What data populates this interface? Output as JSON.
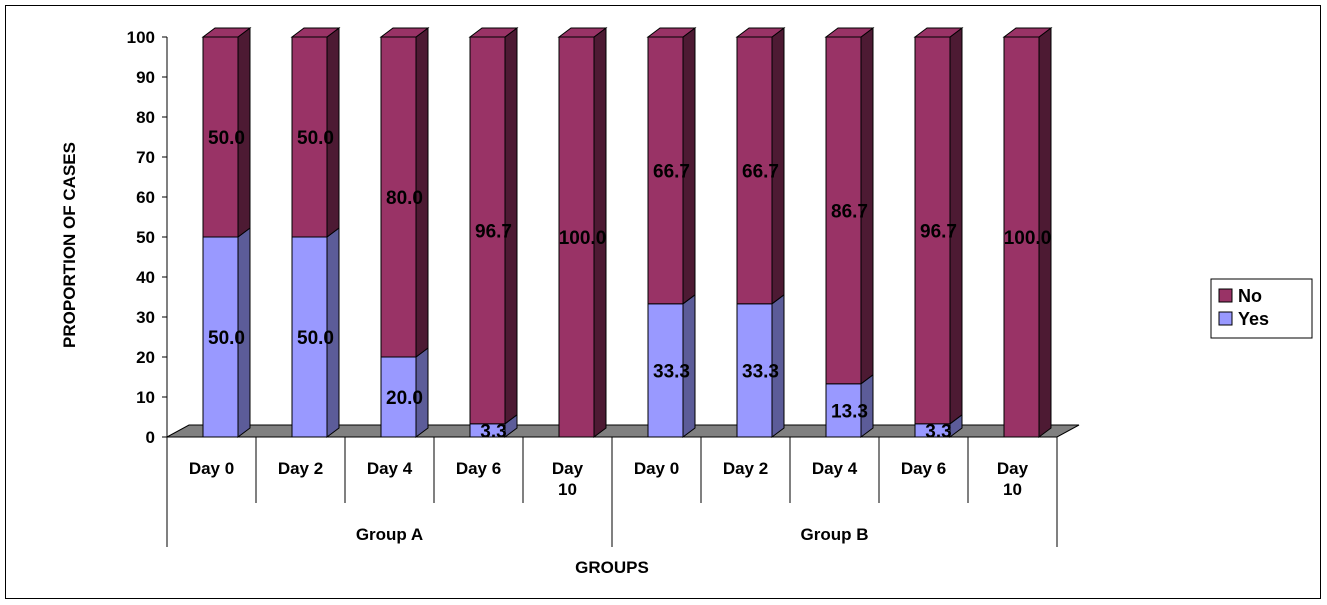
{
  "chart_data": {
    "type": "bar",
    "stacked": true,
    "three_d": true,
    "ylabel": "PROPORTION OF CASES",
    "xlabel": "GROUPS",
    "ylim": [
      0,
      100
    ],
    "yticks": [
      "0",
      "10",
      "20",
      "30",
      "40",
      "50",
      "60",
      "70",
      "80",
      "90",
      "100"
    ],
    "groups": [
      {
        "name": "Group A",
        "categories": [
          "Day 0",
          "Day 2",
          "Day 4",
          "Day 6",
          "Day 10"
        ]
      },
      {
        "name": "Group B",
        "categories": [
          "Day 0",
          "Day 2",
          "Day 4",
          "Day 6",
          "Day 10"
        ]
      }
    ],
    "series": [
      {
        "name": "Yes",
        "color": "#9999FF",
        "side_color": "#5C5C99",
        "values": [
          50.0,
          50.0,
          20.0,
          3.3,
          0,
          33.3,
          33.3,
          13.3,
          3.3,
          0
        ],
        "labels": [
          "50.0",
          "50.0",
          "20.0",
          "3.3",
          "",
          "33.3",
          "33.3",
          "13.3",
          "3.3",
          ""
        ]
      },
      {
        "name": "No",
        "color": "#993366",
        "side_color": "#4D1A33",
        "values": [
          50.0,
          50.0,
          80.0,
          96.7,
          100.0,
          66.7,
          66.7,
          86.7,
          96.7,
          100.0
        ],
        "labels": [
          "50.0",
          "50.0",
          "80.0",
          "96.7",
          "100.0",
          "66.7",
          "66.7",
          "86.7",
          "96.7",
          "100.0"
        ]
      }
    ],
    "legend": {
      "position": "right",
      "order": [
        "No",
        "Yes"
      ]
    },
    "floor_color": "#808080",
    "grid": false
  }
}
